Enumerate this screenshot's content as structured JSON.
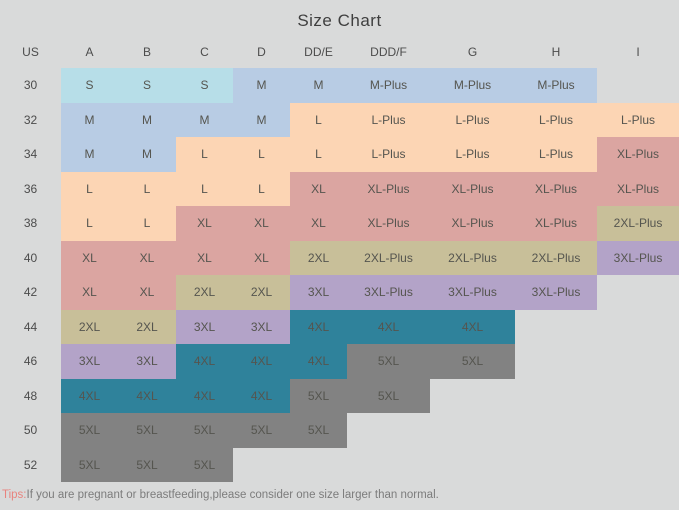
{
  "title": "Size Chart",
  "columns": [
    "US",
    "A",
    "B",
    "C",
    "D",
    "DD/E",
    "DDD/F",
    "G",
    "H",
    "I"
  ],
  "rows": [
    {
      "us": "30",
      "cells": [
        {
          "label": "S",
          "color": "cyan"
        },
        {
          "label": "S",
          "color": "cyan"
        },
        {
          "label": "S",
          "color": "cyan"
        },
        {
          "label": "M",
          "color": "blue"
        },
        {
          "label": "M",
          "color": "blue"
        },
        {
          "label": "M-Plus",
          "color": "blue"
        },
        {
          "label": "M-Plus",
          "color": "blue"
        },
        {
          "label": "M-Plus",
          "color": "blue"
        },
        {
          "label": "",
          "color": "none"
        }
      ]
    },
    {
      "us": "32",
      "cells": [
        {
          "label": "M",
          "color": "blue"
        },
        {
          "label": "M",
          "color": "blue"
        },
        {
          "label": "M",
          "color": "blue"
        },
        {
          "label": "M",
          "color": "blue"
        },
        {
          "label": "L",
          "color": "peach"
        },
        {
          "label": "L-Plus",
          "color": "peach"
        },
        {
          "label": "L-Plus",
          "color": "peach"
        },
        {
          "label": "L-Plus",
          "color": "peach"
        },
        {
          "label": "L-Plus",
          "color": "peach"
        }
      ]
    },
    {
      "us": "34",
      "cells": [
        {
          "label": "M",
          "color": "blue"
        },
        {
          "label": "M",
          "color": "blue"
        },
        {
          "label": "L",
          "color": "peach"
        },
        {
          "label": "L",
          "color": "peach"
        },
        {
          "label": "L",
          "color": "peach"
        },
        {
          "label": "L-Plus",
          "color": "peach"
        },
        {
          "label": "L-Plus",
          "color": "peach"
        },
        {
          "label": "L-Plus",
          "color": "peach"
        },
        {
          "label": "XL-Plus",
          "color": "rose"
        }
      ]
    },
    {
      "us": "36",
      "cells": [
        {
          "label": "L",
          "color": "peach"
        },
        {
          "label": "L",
          "color": "peach"
        },
        {
          "label": "L",
          "color": "peach"
        },
        {
          "label": "L",
          "color": "peach"
        },
        {
          "label": "XL",
          "color": "rose"
        },
        {
          "label": "XL-Plus",
          "color": "rose"
        },
        {
          "label": "XL-Plus",
          "color": "rose"
        },
        {
          "label": "XL-Plus",
          "color": "rose"
        },
        {
          "label": "XL-Plus",
          "color": "rose"
        }
      ]
    },
    {
      "us": "38",
      "cells": [
        {
          "label": "L",
          "color": "peach"
        },
        {
          "label": "L",
          "color": "peach"
        },
        {
          "label": "XL",
          "color": "rose"
        },
        {
          "label": "XL",
          "color": "rose"
        },
        {
          "label": "XL",
          "color": "rose"
        },
        {
          "label": "XL-Plus",
          "color": "rose"
        },
        {
          "label": "XL-Plus",
          "color": "rose"
        },
        {
          "label": "XL-Plus",
          "color": "rose"
        },
        {
          "label": "2XL-Plus",
          "color": "olive"
        }
      ]
    },
    {
      "us": "40",
      "cells": [
        {
          "label": "XL",
          "color": "rose"
        },
        {
          "label": "XL",
          "color": "rose"
        },
        {
          "label": "XL",
          "color": "rose"
        },
        {
          "label": "XL",
          "color": "rose"
        },
        {
          "label": "2XL",
          "color": "olive"
        },
        {
          "label": "2XL-Plus",
          "color": "olive"
        },
        {
          "label": "2XL-Plus",
          "color": "olive"
        },
        {
          "label": "2XL-Plus",
          "color": "olive"
        },
        {
          "label": "3XL-Plus",
          "color": "purple"
        }
      ]
    },
    {
      "us": "42",
      "cells": [
        {
          "label": "XL",
          "color": "rose"
        },
        {
          "label": "XL",
          "color": "rose"
        },
        {
          "label": "2XL",
          "color": "olive"
        },
        {
          "label": "2XL",
          "color": "olive"
        },
        {
          "label": "3XL",
          "color": "purple"
        },
        {
          "label": "3XL-Plus",
          "color": "purple"
        },
        {
          "label": "3XL-Plus",
          "color": "purple"
        },
        {
          "label": "3XL-Plus",
          "color": "purple"
        },
        {
          "label": "",
          "color": "none"
        }
      ]
    },
    {
      "us": "44",
      "cells": [
        {
          "label": "2XL",
          "color": "olive"
        },
        {
          "label": "2XL",
          "color": "olive"
        },
        {
          "label": "3XL",
          "color": "purple"
        },
        {
          "label": "3XL",
          "color": "purple"
        },
        {
          "label": "4XL",
          "color": "teal"
        },
        {
          "label": "4XL",
          "color": "teal"
        },
        {
          "label": "4XL",
          "color": "teal"
        },
        {
          "label": "",
          "color": "none"
        },
        {
          "label": "",
          "color": "none"
        }
      ]
    },
    {
      "us": "46",
      "cells": [
        {
          "label": "3XL",
          "color": "purple"
        },
        {
          "label": "3XL",
          "color": "purple"
        },
        {
          "label": "4XL",
          "color": "teal"
        },
        {
          "label": "4XL",
          "color": "teal"
        },
        {
          "label": "4XL",
          "color": "teal"
        },
        {
          "label": "5XL",
          "color": "gray"
        },
        {
          "label": "5XL",
          "color": "gray"
        },
        {
          "label": "",
          "color": "none"
        },
        {
          "label": "",
          "color": "none"
        }
      ]
    },
    {
      "us": "48",
      "cells": [
        {
          "label": "4XL",
          "color": "teal"
        },
        {
          "label": "4XL",
          "color": "teal"
        },
        {
          "label": "4XL",
          "color": "teal"
        },
        {
          "label": "4XL",
          "color": "teal"
        },
        {
          "label": "5XL",
          "color": "gray"
        },
        {
          "label": "5XL",
          "color": "gray"
        },
        {
          "label": "",
          "color": "none"
        },
        {
          "label": "",
          "color": "none"
        },
        {
          "label": "",
          "color": "none"
        }
      ]
    },
    {
      "us": "50",
      "cells": [
        {
          "label": "5XL",
          "color": "gray"
        },
        {
          "label": "5XL",
          "color": "gray"
        },
        {
          "label": "5XL",
          "color": "gray"
        },
        {
          "label": "5XL",
          "color": "gray"
        },
        {
          "label": "5XL",
          "color": "gray"
        },
        {
          "label": "",
          "color": "none"
        },
        {
          "label": "",
          "color": "none"
        },
        {
          "label": "",
          "color": "none"
        },
        {
          "label": "",
          "color": "none"
        }
      ]
    },
    {
      "us": "52",
      "cells": [
        {
          "label": "5XL",
          "color": "gray"
        },
        {
          "label": "5XL",
          "color": "gray"
        },
        {
          "label": "5XL",
          "color": "gray"
        },
        {
          "label": "",
          "color": "none"
        },
        {
          "label": "",
          "color": "none"
        },
        {
          "label": "",
          "color": "none"
        },
        {
          "label": "",
          "color": "none"
        },
        {
          "label": "",
          "color": "none"
        },
        {
          "label": "",
          "color": "none"
        }
      ]
    }
  ],
  "tips": {
    "label": "Tips:",
    "text": "If you are pregnant or breastfeeding,please consider one size larger than normal."
  },
  "colors": {
    "background": "#d9dada",
    "cyan": "#b7dee8",
    "blue": "#b8cce4",
    "peach": "#fcd5b4",
    "rose": "#dba5a1",
    "olive": "#c8bf99",
    "purple": "#b3a3c8",
    "teal": "#2f829b",
    "gray": "#828282",
    "tips_label": "#e8837e",
    "text": "#515151"
  }
}
